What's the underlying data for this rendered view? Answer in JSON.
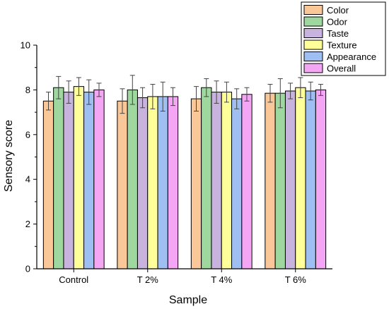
{
  "chart_data": {
    "type": "bar",
    "xlabel": "Sample",
    "ylabel": "Sensory score",
    "ylim": [
      0,
      10
    ],
    "yticks": [
      0,
      2,
      4,
      6,
      8,
      10
    ],
    "categories": [
      "Control",
      "T 2%",
      "T 4%",
      "T 6%"
    ],
    "legend_position": "top-right",
    "grid": false,
    "series": [
      {
        "name": "Color",
        "color": "#FAC898",
        "values": [
          7.5,
          7.5,
          7.6,
          7.85
        ],
        "errors": [
          0.4,
          0.55,
          0.55,
          0.4
        ]
      },
      {
        "name": "Odor",
        "color": "#9ED89E",
        "values": [
          8.1,
          8.0,
          8.1,
          7.85
        ],
        "errors": [
          0.5,
          0.65,
          0.4,
          0.65
        ]
      },
      {
        "name": "Taste",
        "color": "#C8B2DE",
        "values": [
          7.9,
          7.65,
          7.9,
          7.95
        ],
        "errors": [
          0.5,
          0.45,
          0.5,
          0.35
        ]
      },
      {
        "name": "Texture",
        "color": "#FFFF9A",
        "values": [
          8.15,
          7.7,
          7.9,
          8.1
        ],
        "errors": [
          0.4,
          0.55,
          0.45,
          0.45
        ]
      },
      {
        "name": "Appearance",
        "color": "#9FBFF2",
        "values": [
          7.9,
          7.7,
          7.6,
          7.95
        ],
        "errors": [
          0.55,
          0.65,
          0.45,
          0.4
        ]
      },
      {
        "name": "Overall",
        "color": "#F4A6F4",
        "values": [
          8.0,
          7.7,
          7.8,
          8.0
        ],
        "errors": [
          0.3,
          0.4,
          0.3,
          0.25
        ]
      }
    ]
  }
}
